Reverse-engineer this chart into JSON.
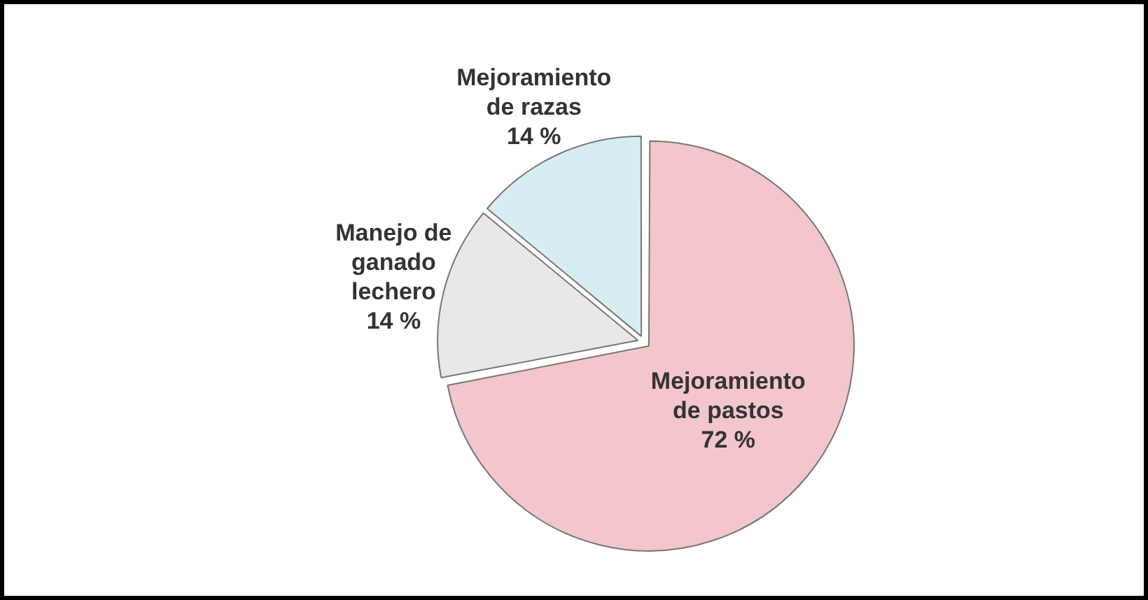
{
  "chart_data": {
    "type": "pie",
    "categories": [
      "Mejoramiento de pastos",
      "Manejo de ganado lechero",
      "Mejoramiento de razas"
    ],
    "values": [
      72,
      14,
      14
    ],
    "colors": [
      "#f2c6ca",
      "#e8e8e8",
      "#d6eef2"
    ],
    "value_labels": [
      "72 %",
      "14 %",
      "14 %"
    ]
  }
}
